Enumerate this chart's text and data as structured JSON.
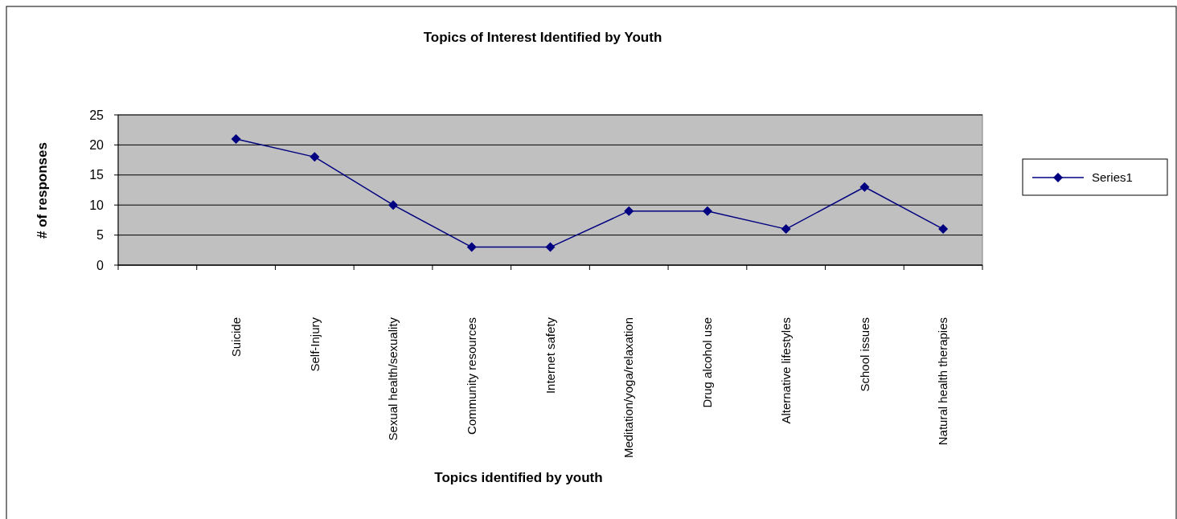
{
  "chart_data": {
    "type": "line",
    "title": "Topics of Interest Identified by Youth",
    "xlabel": "Topics identified by youth",
    "ylabel": "# of responses",
    "categories": [
      null,
      "Suicide",
      "Self-Injury",
      "Sexual health/sexuality",
      "Community resources",
      "Internet safety",
      "Meditation/yoga/relaxation",
      "Drug alcohol use",
      "Alternative lifestyles",
      "School issues",
      "Natural health therapies"
    ],
    "series": [
      {
        "name": "Series1",
        "color": "#000080",
        "values": [
          null,
          21,
          18,
          10,
          3,
          3,
          9,
          9,
          6,
          13,
          6
        ]
      }
    ],
    "ylim": [
      0,
      25
    ],
    "yticks": [
      0,
      5,
      10,
      15,
      20,
      25
    ],
    "grid": "y",
    "legend": "right",
    "marker": "diamond",
    "line_style": "solid"
  }
}
